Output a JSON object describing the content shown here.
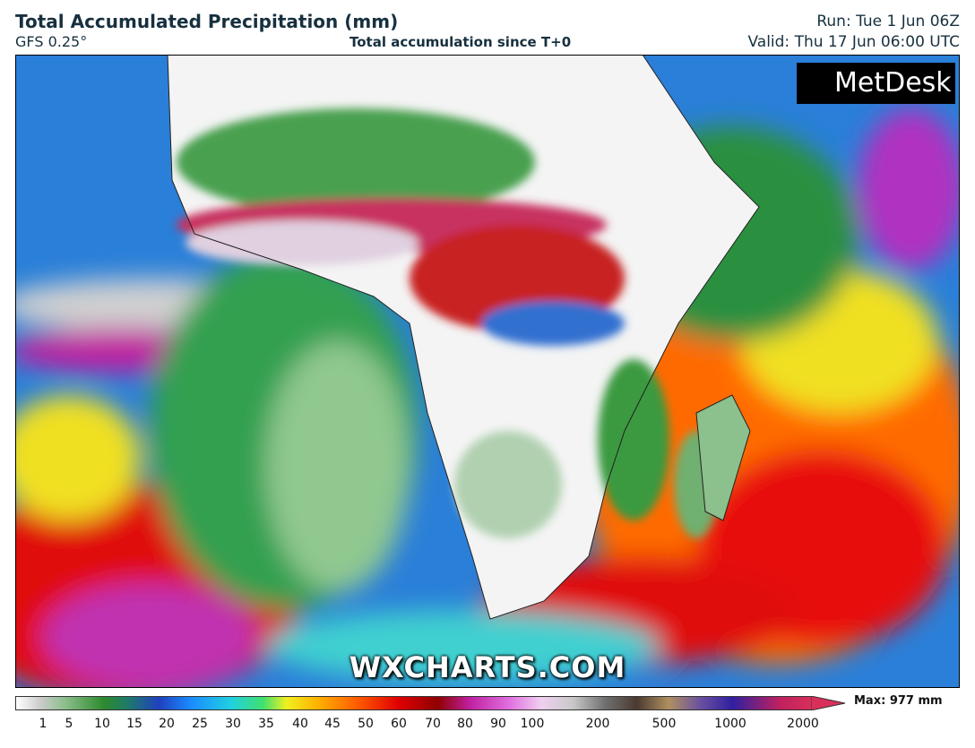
{
  "header": {
    "title": "Total Accumulated Precipitation (mm)",
    "model": "GFS 0.25°",
    "subtitle": "Total accumulation since T+0",
    "run": "Run: Tue 1 Jun 06Z",
    "valid": "Valid: Thu 17 Jun 06:00 UTC"
  },
  "map": {
    "logo": "MetDesk",
    "watermark": "WXCHARTS.COM"
  },
  "legend": {
    "ticks": [
      1,
      5,
      10,
      15,
      20,
      25,
      30,
      35,
      40,
      45,
      50,
      60,
      70,
      80,
      90,
      100,
      200,
      500,
      1000,
      2000
    ],
    "max": "Max: 977 mm"
  }
}
